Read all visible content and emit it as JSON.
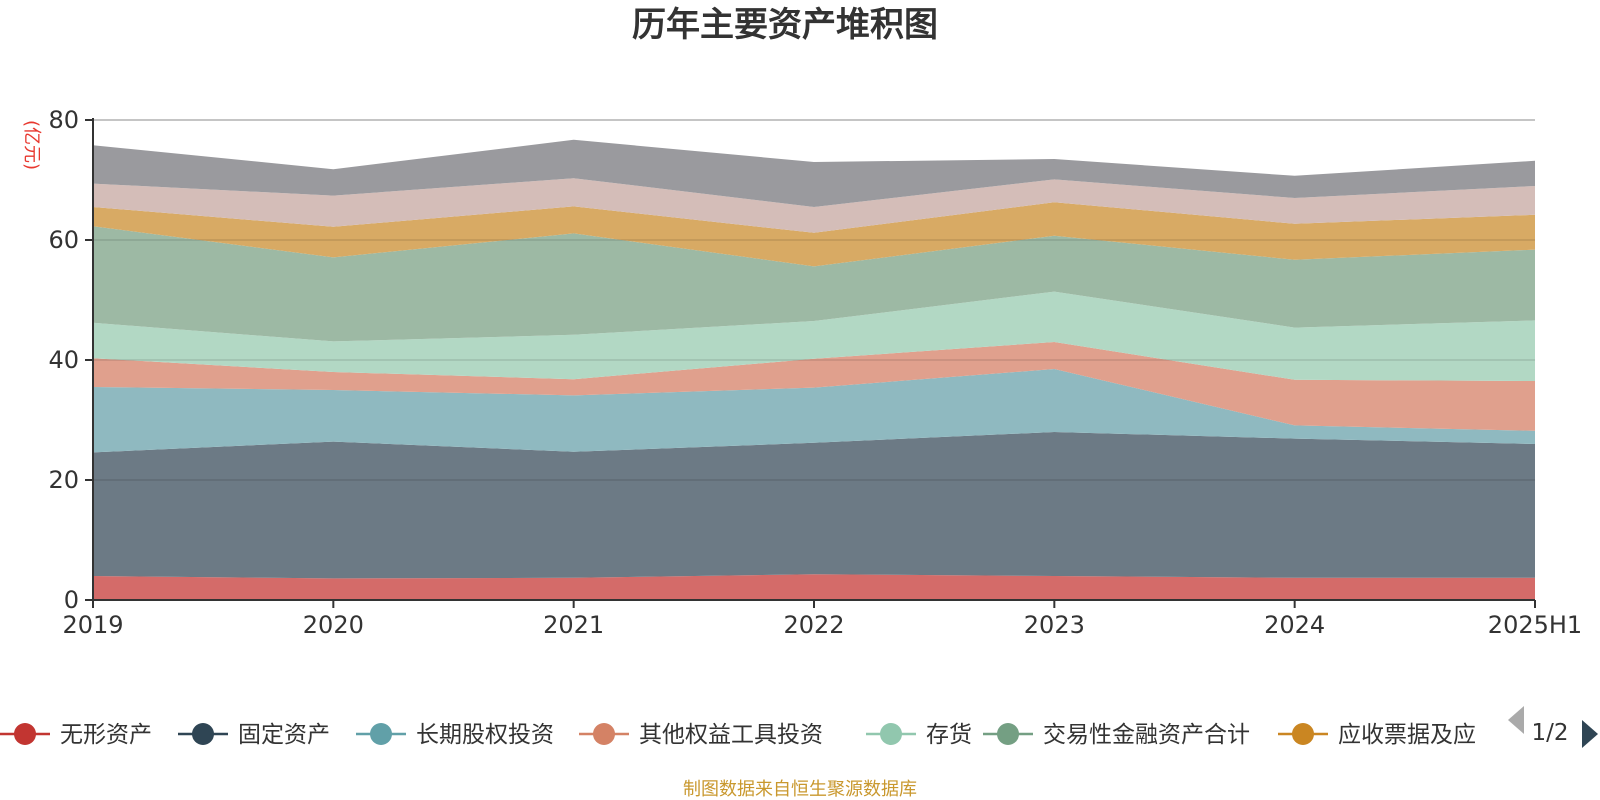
{
  "chart_data": {
    "type": "area",
    "stacked": true,
    "title": "历年主要资产堆积图",
    "ylabel": "(亿元)",
    "categories": [
      "2019",
      "2020",
      "2021",
      "2022",
      "2023",
      "2024",
      "2025H1"
    ],
    "ylim": [
      0,
      80
    ],
    "yticks": [
      0,
      20,
      40,
      60,
      80
    ],
    "grid": true,
    "series": [
      {
        "name": "无形资产",
        "color": "#d46b69",
        "values": [
          4.0,
          3.6,
          3.7,
          4.3,
          4.0,
          3.7,
          3.7
        ]
      },
      {
        "name": "固定资产",
        "color": "#6c7a85",
        "values": [
          20.6,
          22.8,
          21.0,
          21.9,
          24.0,
          23.2,
          22.3
        ]
      },
      {
        "name": "长期股权投资",
        "color": "#8fb9c0",
        "values": [
          10.9,
          8.6,
          9.4,
          9.2,
          10.5,
          2.2,
          2.2
        ]
      },
      {
        "name": "其他权益工具投资",
        "color": "#e0a08d",
        "values": [
          4.8,
          3.0,
          2.7,
          4.8,
          4.5,
          7.6,
          8.3
        ]
      },
      {
        "name": "存货",
        "color": "#b2d8c4",
        "values": [
          5.9,
          5.1,
          7.4,
          6.3,
          8.4,
          8.7,
          10.1
        ]
      },
      {
        "name": "交易性金融资产合计",
        "color": "#9db9a4",
        "values": [
          16.1,
          14.0,
          16.9,
          9.1,
          9.3,
          11.3,
          11.8
        ]
      },
      {
        "name": "应收票据及应收账款",
        "color": "#d8aa64",
        "values": [
          3.2,
          5.1,
          4.5,
          5.6,
          5.6,
          6.0,
          5.8
        ]
      },
      {
        "name": "",
        "color": "#d4bdb8",
        "values": [
          3.9,
          5.2,
          4.7,
          4.3,
          3.8,
          4.3,
          4.8
        ]
      },
      {
        "name": "",
        "color": "#9a9a9e",
        "values": [
          6.4,
          4.4,
          6.4,
          7.5,
          3.4,
          3.7,
          4.2
        ]
      }
    ]
  },
  "legend": {
    "items": [
      {
        "label": "无形资产",
        "color": "#c23531"
      },
      {
        "label": "固定资产",
        "color": "#2f4554"
      },
      {
        "label": "长期股权投资",
        "color": "#61a0a8"
      },
      {
        "label": "其他权益工具投资",
        "color": "#d48265"
      },
      {
        "label": "存货",
        "color": "#91c7ae"
      },
      {
        "label": "交易性金融资产合计",
        "color": "#749f83"
      },
      {
        "label": "应收票据及应",
        "color": "#ca8622"
      }
    ],
    "page_indicator": "1/2"
  },
  "footer": "制图数据来自恒生聚源数据库"
}
